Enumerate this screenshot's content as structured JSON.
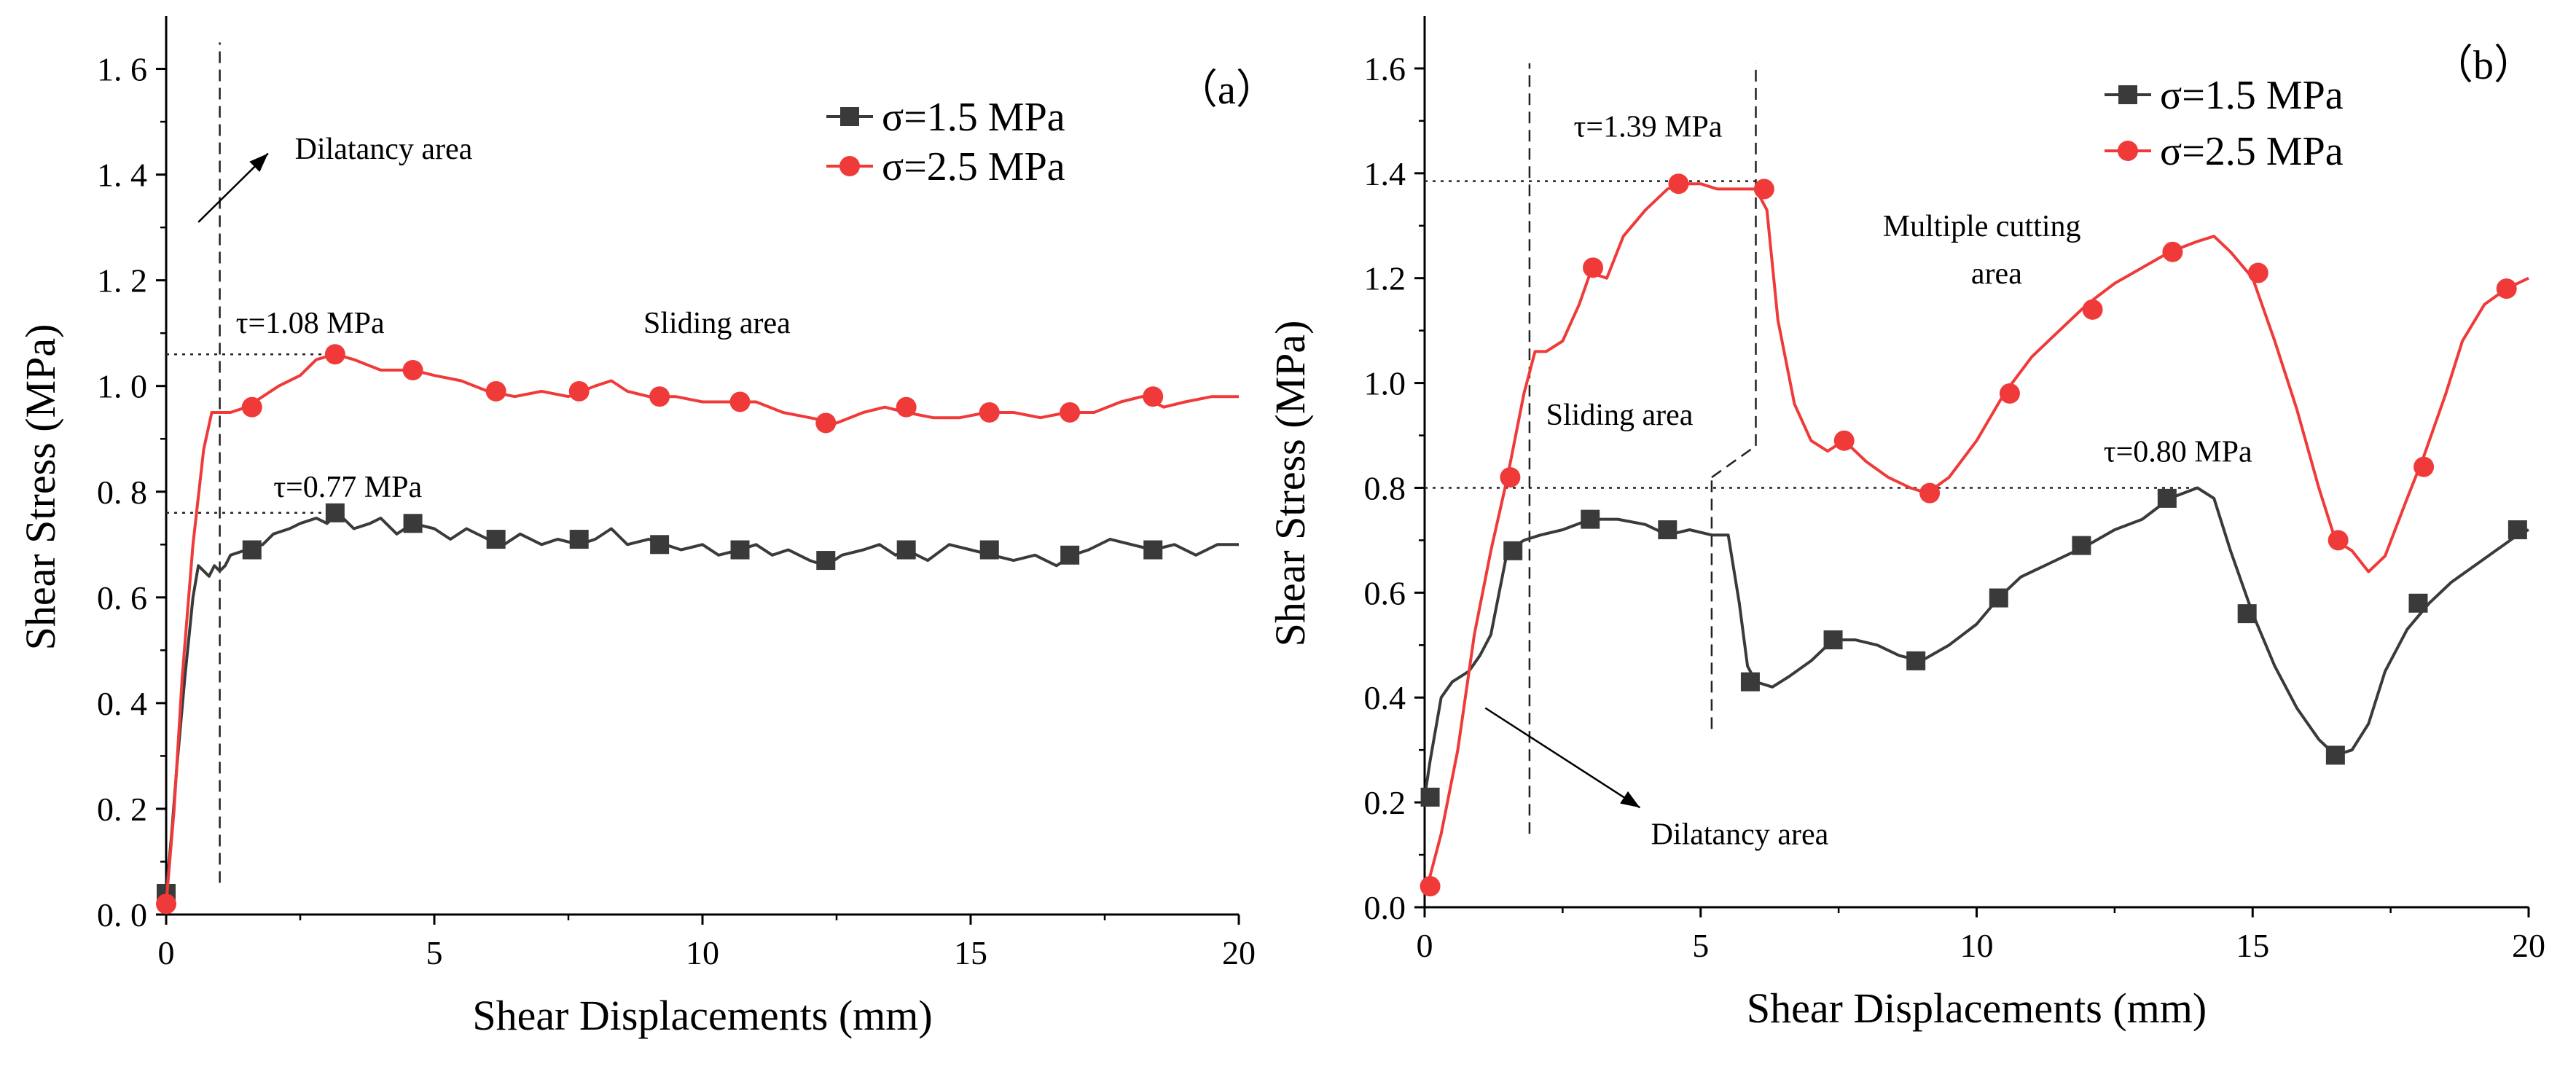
{
  "chart_data": [
    {
      "type": "line",
      "panel_label": "（a）",
      "xlabel": "Shear Displacements (mm)",
      "ylabel": "Shear Stress (MPa)",
      "xlim": [
        0,
        20
      ],
      "ylim": [
        0,
        1.7
      ],
      "xticks": [
        0,
        5,
        10,
        15,
        20
      ],
      "xtick_labels": [
        "0",
        "5",
        "10",
        "15",
        "20"
      ],
      "yticks": [
        0,
        0.2,
        0.4,
        0.6,
        0.8,
        1.0,
        1.2,
        1.4,
        1.6
      ],
      "ytick_labels": [
        "0. 0",
        "0. 2",
        "0. 4",
        "0. 6",
        "0. 8",
        "1. 0",
        "1. 2",
        "1. 4",
        "1. 6"
      ],
      "legend_position": "top-right",
      "series": [
        {
          "name": "σ=1.5 MPa",
          "color": "#3a3a3a",
          "marker": "square",
          "x": [
            0,
            0.1,
            0.2,
            0.35,
            0.5,
            0.6,
            0.7,
            0.8,
            0.9,
            1.0,
            1.1,
            1.2,
            1.5,
            1.8,
            2.0,
            2.3,
            2.5,
            2.8,
            3.0,
            3.2,
            3.5,
            3.8,
            4.0,
            4.3,
            4.6,
            5.0,
            5.3,
            5.6,
            6.0,
            6.3,
            6.6,
            7.0,
            7.3,
            7.7,
            8.0,
            8.3,
            8.6,
            9.0,
            9.3,
            9.6,
            10.0,
            10.3,
            10.7,
            11.0,
            11.3,
            11.6,
            12.0,
            12.3,
            12.6,
            13.0,
            13.3,
            13.6,
            13.8,
            14.2,
            14.6,
            15.0,
            15.4,
            15.8,
            16.2,
            16.6,
            16.9,
            17.2,
            17.6,
            18.0,
            18.4,
            18.8,
            19.2,
            19.6,
            20.0
          ],
          "y": [
            0.04,
            0.15,
            0.28,
            0.45,
            0.6,
            0.66,
            0.65,
            0.64,
            0.66,
            0.65,
            0.66,
            0.68,
            0.69,
            0.7,
            0.72,
            0.73,
            0.74,
            0.75,
            0.74,
            0.76,
            0.73,
            0.74,
            0.75,
            0.72,
            0.74,
            0.73,
            0.71,
            0.73,
            0.71,
            0.7,
            0.72,
            0.7,
            0.71,
            0.7,
            0.71,
            0.73,
            0.7,
            0.71,
            0.7,
            0.69,
            0.7,
            0.68,
            0.69,
            0.7,
            0.68,
            0.69,
            0.67,
            0.66,
            0.68,
            0.69,
            0.7,
            0.68,
            0.69,
            0.67,
            0.7,
            0.69,
            0.68,
            0.67,
            0.68,
            0.66,
            0.68,
            0.69,
            0.71,
            0.7,
            0.69,
            0.7,
            0.68,
            0.7,
            0.7
          ],
          "marker_x": [
            0,
            1.6,
            3.15,
            4.6,
            6.15,
            7.7,
            9.2,
            10.7,
            12.3,
            13.8,
            15.35,
            16.85,
            18.4
          ],
          "marker_y": [
            0.04,
            0.69,
            0.76,
            0.74,
            0.71,
            0.71,
            0.7,
            0.69,
            0.67,
            0.69,
            0.69,
            0.68,
            0.69
          ]
        },
        {
          "name": "σ=2.5 MPa",
          "color": "#f03a3a",
          "marker": "circle",
          "x": [
            0,
            0.15,
            0.3,
            0.5,
            0.7,
            0.85,
            1.0,
            1.2,
            1.5,
            1.8,
            2.1,
            2.5,
            2.8,
            3.15,
            3.5,
            4.0,
            4.6,
            5.0,
            5.5,
            6.0,
            6.5,
            7.0,
            7.5,
            8.0,
            8.3,
            8.6,
            9.0,
            9.5,
            10.0,
            10.5,
            11.0,
            11.5,
            12.0,
            12.5,
            13.0,
            13.4,
            13.8,
            14.3,
            14.8,
            15.3,
            15.8,
            16.3,
            16.8,
            17.3,
            17.8,
            18.2,
            18.6,
            19.0,
            19.5,
            20.0
          ],
          "y": [
            0.02,
            0.2,
            0.45,
            0.7,
            0.88,
            0.95,
            0.95,
            0.95,
            0.96,
            0.98,
            1.0,
            1.02,
            1.05,
            1.06,
            1.05,
            1.03,
            1.03,
            1.02,
            1.01,
            0.99,
            0.98,
            0.99,
            0.98,
            1.0,
            1.01,
            0.99,
            0.98,
            0.98,
            0.97,
            0.97,
            0.97,
            0.95,
            0.94,
            0.93,
            0.95,
            0.96,
            0.95,
            0.94,
            0.94,
            0.95,
            0.95,
            0.94,
            0.95,
            0.95,
            0.97,
            0.98,
            0.96,
            0.97,
            0.98,
            0.98
          ],
          "marker_x": [
            0,
            1.6,
            3.15,
            4.6,
            6.15,
            7.7,
            9.2,
            10.7,
            12.3,
            13.8,
            15.35,
            16.85,
            18.4
          ],
          "marker_y": [
            0.02,
            0.96,
            1.06,
            1.03,
            0.99,
            0.99,
            0.98,
            0.97,
            0.93,
            0.96,
            0.95,
            0.95,
            0.98
          ]
        }
      ],
      "annotations": [
        {
          "text": "Dilatancy area",
          "x": 2.4,
          "y": 1.43
        },
        {
          "text": "Sliding area",
          "x": 8.9,
          "y": 1.1
        },
        {
          "text": "τ=1.08 MPa",
          "x": 1.3,
          "y": 1.1
        },
        {
          "text": "τ=0.77 MPa",
          "x": 2.0,
          "y": 0.79
        }
      ],
      "reference_lines": [
        {
          "kind": "vertical",
          "x": 1.0,
          "y_from": 0.06,
          "y_to": 1.65
        },
        {
          "kind": "horizontal",
          "y": 1.06,
          "x_from": 0,
          "x_to": 3.1
        },
        {
          "kind": "horizontal",
          "y": 0.76,
          "x_from": 0,
          "x_to": 3.1
        }
      ],
      "arrows": [
        {
          "from": [
            0.6,
            1.31
          ],
          "to": [
            1.9,
            1.44
          ]
        }
      ]
    },
    {
      "type": "line",
      "panel_label": "（b）",
      "xlabel": "Shear Displacements (mm)",
      "ylabel": "Shear Stress (MPa)",
      "xlim": [
        0,
        20
      ],
      "ylim": [
        0,
        1.7
      ],
      "xticks": [
        0,
        5,
        10,
        15,
        20
      ],
      "xtick_labels": [
        "0",
        "5",
        "10",
        "15",
        "20"
      ],
      "yticks": [
        0,
        0.2,
        0.4,
        0.6,
        0.8,
        1.0,
        1.2,
        1.4,
        1.6
      ],
      "ytick_labels": [
        "0.0",
        "0.2",
        "0.4",
        "0.6",
        "0.8",
        "1.0",
        "1.2",
        "1.4",
        "1.6"
      ],
      "legend_position": "top-right",
      "series": [
        {
          "name": "σ=1.5 MPa",
          "color": "#3a3a3a",
          "marker": "square",
          "x": [
            0,
            0.1,
            0.3,
            0.5,
            0.8,
            1.0,
            1.2,
            1.5,
            1.8,
            2.1,
            2.5,
            3.0,
            3.5,
            4.0,
            4.4,
            4.8,
            5.2,
            5.5,
            5.7,
            5.85,
            6.0,
            6.3,
            6.6,
            7.0,
            7.4,
            7.8,
            8.2,
            8.6,
            9.0,
            9.5,
            10.0,
            10.4,
            10.8,
            11.2,
            11.6,
            12.0,
            12.5,
            13.0,
            13.5,
            14.0,
            14.3,
            14.6,
            15.0,
            15.4,
            15.8,
            16.2,
            16.5,
            16.8,
            17.1,
            17.4,
            17.8,
            18.2,
            18.6,
            19.0,
            19.4,
            19.8,
            20.0
          ],
          "y": [
            0.21,
            0.28,
            0.4,
            0.43,
            0.45,
            0.48,
            0.52,
            0.68,
            0.7,
            0.71,
            0.72,
            0.74,
            0.74,
            0.73,
            0.71,
            0.72,
            0.71,
            0.71,
            0.58,
            0.46,
            0.43,
            0.42,
            0.44,
            0.47,
            0.51,
            0.51,
            0.5,
            0.48,
            0.47,
            0.5,
            0.54,
            0.59,
            0.63,
            0.65,
            0.67,
            0.69,
            0.72,
            0.74,
            0.78,
            0.8,
            0.78,
            0.68,
            0.56,
            0.46,
            0.38,
            0.32,
            0.29,
            0.3,
            0.35,
            0.45,
            0.53,
            0.58,
            0.62,
            0.65,
            0.68,
            0.71,
            0.72
          ],
          "marker_x": [
            0.1,
            1.6,
            3.0,
            4.4,
            5.9,
            7.4,
            8.9,
            10.4,
            11.9,
            13.45,
            14.9,
            16.5,
            18.0,
            19.8
          ],
          "marker_y": [
            0.21,
            0.68,
            0.74,
            0.72,
            0.43,
            0.51,
            0.47,
            0.59,
            0.69,
            0.78,
            0.56,
            0.29,
            0.58,
            0.72
          ]
        },
        {
          "name": "σ=2.5 MPa",
          "color": "#f03a3a",
          "marker": "circle",
          "x": [
            0,
            0.1,
            0.3,
            0.6,
            0.9,
            1.2,
            1.5,
            1.8,
            2.0,
            2.2,
            2.5,
            2.8,
            3.0,
            3.3,
            3.6,
            4.0,
            4.4,
            4.7,
            5.0,
            5.3,
            5.6,
            6.0,
            6.2,
            6.4,
            6.7,
            7.0,
            7.3,
            7.6,
            8.0,
            8.4,
            8.8,
            9.1,
            9.5,
            10.0,
            10.5,
            11.0,
            11.5,
            12.0,
            12.5,
            13.0,
            13.5,
            14.0,
            14.3,
            14.6,
            15.0,
            15.4,
            15.8,
            16.2,
            16.5,
            16.8,
            17.1,
            17.4,
            17.8,
            18.1,
            18.5,
            18.8,
            19.2,
            19.6,
            20.0
          ],
          "y": [
            0.04,
            0.06,
            0.14,
            0.3,
            0.52,
            0.68,
            0.82,
            0.98,
            1.06,
            1.06,
            1.08,
            1.15,
            1.21,
            1.2,
            1.28,
            1.33,
            1.37,
            1.38,
            1.38,
            1.37,
            1.37,
            1.37,
            1.33,
            1.12,
            0.96,
            0.89,
            0.87,
            0.89,
            0.85,
            0.82,
            0.8,
            0.79,
            0.82,
            0.89,
            0.98,
            1.05,
            1.1,
            1.15,
            1.19,
            1.22,
            1.25,
            1.27,
            1.28,
            1.25,
            1.2,
            1.08,
            0.95,
            0.8,
            0.7,
            0.68,
            0.64,
            0.67,
            0.78,
            0.86,
            0.98,
            1.08,
            1.15,
            1.18,
            1.2
          ],
          "marker_x": [
            0.1,
            1.55,
            3.05,
            4.6,
            6.15,
            7.6,
            9.15,
            10.6,
            12.1,
            13.55,
            15.1,
            16.55,
            18.1,
            19.6
          ],
          "marker_y": [
            0.04,
            0.82,
            1.22,
            1.38,
            1.37,
            0.89,
            0.79,
            0.98,
            1.14,
            1.25,
            1.21,
            0.7,
            0.84,
            1.18
          ]
        }
      ],
      "annotations": [
        {
          "text": "τ=1.39 MPa",
          "x": 2.7,
          "y": 1.47
        },
        {
          "text": "Multiple cutting",
          "x": 8.3,
          "y": 1.28
        },
        {
          "text": "area",
          "x": 9.9,
          "y": 1.19
        },
        {
          "text": "Sliding area",
          "x": 2.2,
          "y": 0.92
        },
        {
          "text": "τ=0.80 MPa",
          "x": 12.3,
          "y": 0.85
        },
        {
          "text": "Dilatancy area",
          "x": 4.1,
          "y": 0.12
        }
      ],
      "reference_lines": [
        {
          "kind": "vertical",
          "x": 1.9,
          "y_from": 0.14,
          "y_to": 1.61
        },
        {
          "kind": "vertical",
          "x": 6.0,
          "y_from": 0.88,
          "y_to": 1.61
        },
        {
          "kind": "vertical",
          "x": 5.2,
          "y_from": 0.34,
          "y_to": 0.82
        },
        {
          "kind": "segment",
          "x_from": 5.2,
          "y_from": 0.82,
          "x_to": 6.0,
          "y_to": 0.88
        },
        {
          "kind": "horizontal",
          "y": 1.385,
          "x_from": 0,
          "x_to": 6.2
        },
        {
          "kind": "horizontal",
          "y": 0.8,
          "x_from": 0,
          "x_to": 14.0
        }
      ],
      "arrows": [
        {
          "from": [
            1.1,
            0.38
          ],
          "to": [
            3.9,
            0.19
          ]
        }
      ]
    }
  ]
}
